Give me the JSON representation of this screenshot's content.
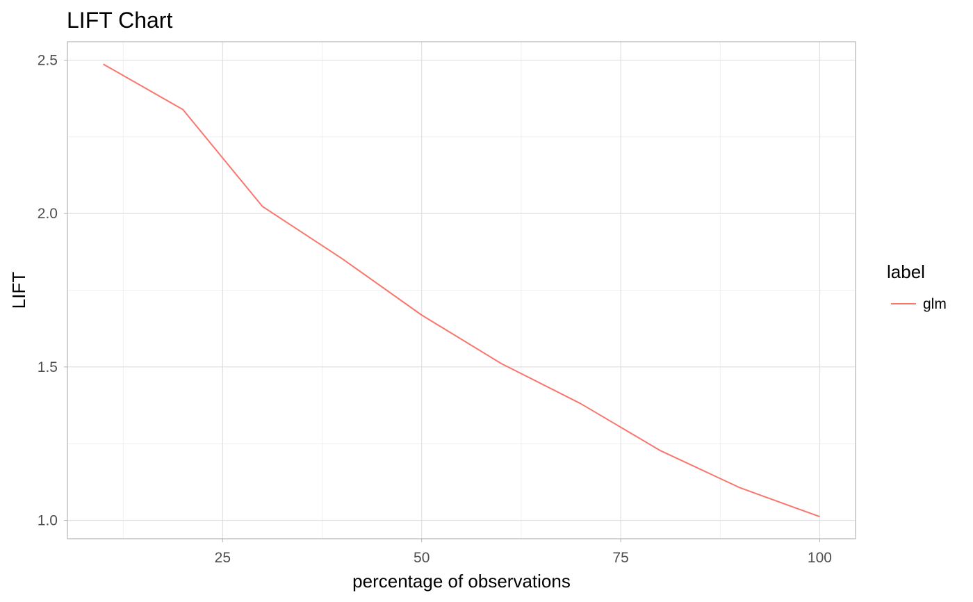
{
  "chart_data": {
    "type": "line",
    "title": "LIFT Chart",
    "xlabel": "percentage of observations",
    "ylabel": "LIFT",
    "x": [
      10,
      20,
      30,
      40,
      50,
      60,
      70,
      80,
      90,
      100
    ],
    "series": [
      {
        "name": "glm",
        "color": "#F8766D",
        "values": [
          2.487,
          2.339,
          2.023,
          1.853,
          1.669,
          1.511,
          1.38,
          1.227,
          1.106,
          1.012
        ]
      }
    ],
    "xlim": [
      5.5,
      104.5
    ],
    "ylim": [
      0.94,
      2.56
    ],
    "x_ticks": [
      25,
      50,
      75,
      100
    ],
    "x_tick_labels": [
      "25",
      "50",
      "75",
      "100"
    ],
    "y_ticks": [
      1.0,
      1.5,
      2.0,
      2.5
    ],
    "y_tick_labels": [
      "1.0",
      "1.5",
      "2.0",
      "2.5"
    ],
    "x_minor_ticks": [
      12.5,
      37.5,
      62.5,
      87.5
    ],
    "y_minor_ticks": [
      1.25,
      1.75,
      2.25
    ],
    "grid": true,
    "legend": {
      "title": "label",
      "position": "right"
    }
  }
}
